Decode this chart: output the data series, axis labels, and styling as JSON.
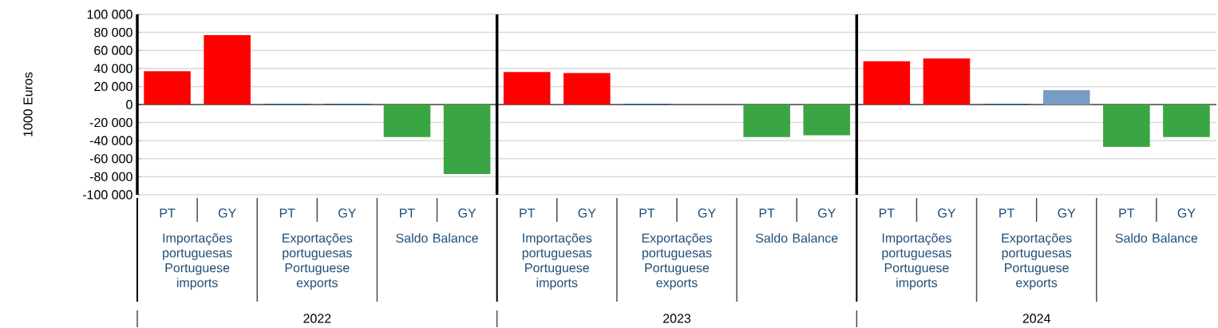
{
  "chart_data": {
    "type": "bar",
    "ylabel": "1000 Euros",
    "categories": [
      "PT",
      "GY",
      "PT",
      "GY",
      "PT",
      "GY",
      "PT",
      "GY",
      "PT",
      "GY",
      "PT",
      "GY",
      "PT",
      "GY",
      "PT",
      "GY",
      "PT",
      "GY"
    ],
    "values": [
      37000,
      77000,
      1000,
      1000,
      -36000,
      -77000,
      36000,
      35000,
      1000,
      0,
      -36000,
      -34000,
      48000,
      51000,
      1000,
      16000,
      -47000,
      -36000
    ],
    "colors": [
      "#ff0000",
      "#ff0000",
      "#1f4e79",
      "#1f4e79",
      "#3aa543",
      "#3aa543",
      "#ff0000",
      "#ff0000",
      "#1f4e79",
      "#1f4e79",
      "#3aa543",
      "#3aa543",
      "#ff0000",
      "#ff0000",
      "#1f4e79",
      "#7a9cc4",
      "#3aa543",
      "#3aa543"
    ],
    "ylim": [
      -100000,
      100000
    ],
    "yticks": [
      {
        "value": -100000,
        "label": "-100 000"
      },
      {
        "value": -80000,
        "label": "-80 000"
      },
      {
        "value": -60000,
        "label": "-60 000"
      },
      {
        "value": -40000,
        "label": "-40 000"
      },
      {
        "value": -20000,
        "label": "-20 000"
      },
      {
        "value": 0,
        "label": "0"
      },
      {
        "value": 20000,
        "label": "20 000"
      },
      {
        "value": 40000,
        "label": "40 000"
      },
      {
        "value": 60000,
        "label": "60 000"
      },
      {
        "value": 80000,
        "label": "80 000"
      },
      {
        "value": 100000,
        "label": "100 000"
      }
    ],
    "grid": "y",
    "annotations": [
      "Importações portuguesas Portuguese imports",
      "Exportações portuguesas Portuguese exports",
      "Saldo Balance",
      "2022",
      "Importações portuguesas Portuguese imports",
      "Exportações portuguesas Portuguese exports",
      "Saldo Balance",
      "2023",
      "Importações portuguesas Portuguese imports",
      "Exportações portuguesas Portuguese exports",
      "Saldo Balance",
      "2024"
    ]
  }
}
